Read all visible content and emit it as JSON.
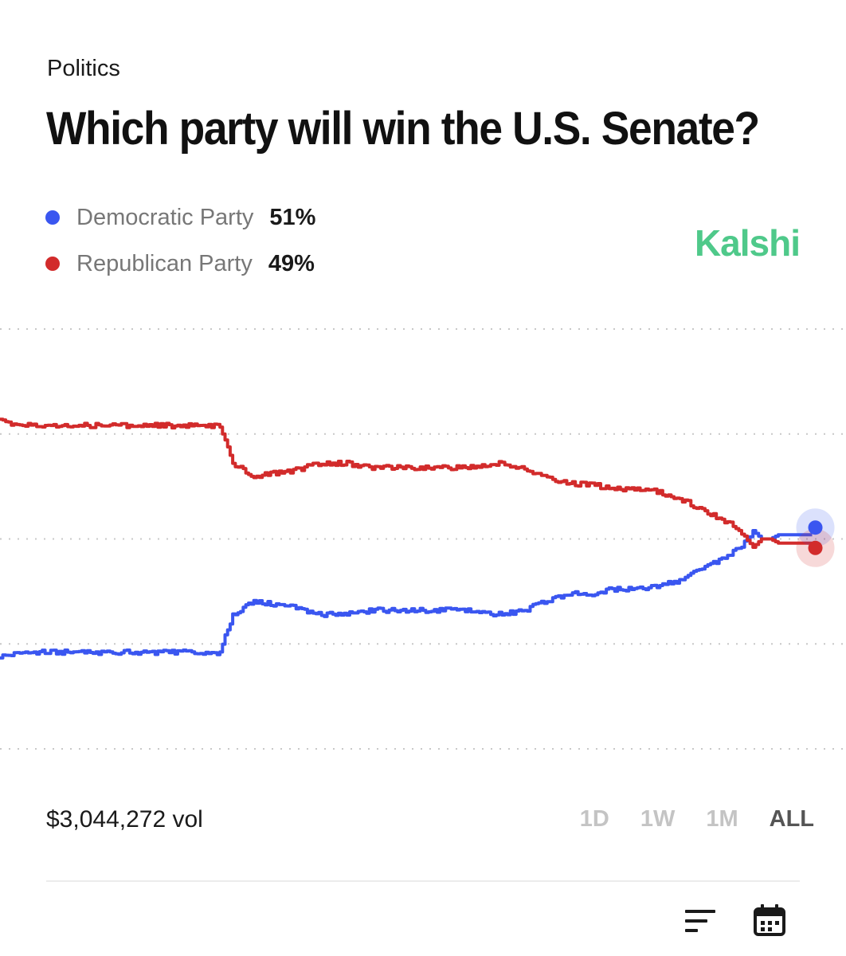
{
  "header": {
    "category": "Politics",
    "title": "Which party will win the U.S. Senate?"
  },
  "legend": [
    {
      "name": "Democratic Party",
      "percent": "51%",
      "color": "#3a56f0"
    },
    {
      "name": "Republican Party",
      "percent": "49%",
      "color": "#d22b2b"
    }
  ],
  "brand": {
    "name": "Kalshi",
    "color": "#4fc98a"
  },
  "chart_data": {
    "type": "line",
    "ylim": [
      0,
      100
    ],
    "grid": true,
    "x": [
      0,
      3,
      6,
      9,
      12,
      15,
      17,
      20,
      23,
      26,
      27.5,
      30,
      34,
      38,
      41,
      44,
      47,
      50,
      53,
      56,
      59,
      62,
      64,
      66,
      68,
      70,
      72,
      74,
      76,
      78,
      80,
      82,
      84,
      86,
      88,
      89,
      90,
      91,
      92,
      93,
      94,
      96
    ],
    "series": [
      {
        "name": "Democratic Party",
        "color": "#3a56f0",
        "values": [
          22,
          23,
          23,
          23,
          23,
          23,
          23,
          23,
          23,
          23,
          32,
          35,
          34,
          32,
          32,
          33,
          33,
          33,
          33,
          33,
          32,
          33,
          35,
          36,
          37,
          37,
          38,
          38,
          38,
          39,
          40,
          42,
          44,
          46,
          49,
          52,
          50,
          50,
          51,
          51,
          51,
          51
        ]
      },
      {
        "name": "Republican Party",
        "color": "#d22b2b",
        "values": [
          78,
          77,
          77,
          77,
          77,
          77,
          77,
          77,
          77,
          77,
          68,
          65,
          66,
          68,
          68,
          67,
          67,
          67,
          67,
          67,
          68,
          67,
          65,
          64,
          63,
          63,
          62,
          62,
          62,
          61,
          60,
          58,
          56,
          54,
          51,
          48,
          50,
          50,
          49,
          49,
          49,
          49
        ]
      }
    ]
  },
  "footer": {
    "volume": "$3,044,272 vol",
    "ranges": [
      "1D",
      "1W",
      "1M",
      "ALL"
    ],
    "active_range": "ALL"
  },
  "icons": {
    "sort": "sort-lines-icon",
    "calendar": "calendar-icon"
  }
}
